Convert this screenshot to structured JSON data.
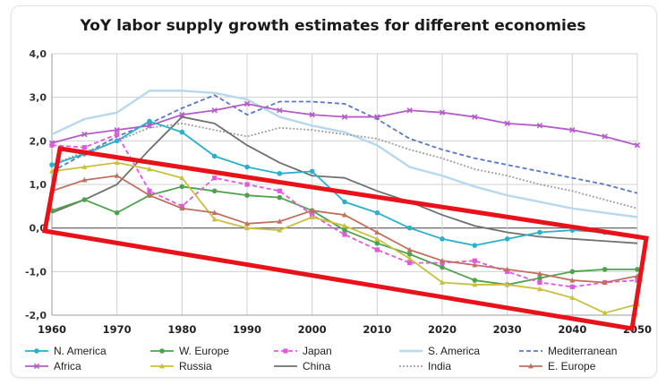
{
  "chart_data": {
    "type": "line",
    "title": "YoY labor supply growth estimates for different economies",
    "xlabel": "",
    "ylabel": "",
    "x": [
      1960,
      1965,
      1970,
      1975,
      1980,
      1985,
      1990,
      1995,
      2000,
      2005,
      2010,
      2015,
      2020,
      2025,
      2030,
      2035,
      2040,
      2045,
      2050
    ],
    "x_tick_labels": [
      "1960",
      "1970",
      "1980",
      "1990",
      "2000",
      "2010",
      "2020",
      "2030",
      "2040",
      "2050"
    ],
    "x_ticks": [
      1960,
      1970,
      1980,
      1990,
      2000,
      2010,
      2020,
      2030,
      2040,
      2050
    ],
    "xlim": [
      1960,
      2050
    ],
    "y_tick_labels": [
      "-2,0",
      "-1,0",
      "0,0",
      "1,0",
      "2,0",
      "3,0",
      "4,0"
    ],
    "y_ticks": [
      -2,
      -1,
      0,
      1,
      2,
      3,
      4
    ],
    "ylim": [
      -2,
      4
    ],
    "grid": true,
    "legend_position": "bottom",
    "series": [
      {
        "name": "N. America",
        "color": "#2ab0c8",
        "style": "solid",
        "marker": "circle",
        "values": [
          1.45,
          1.7,
          2.0,
          2.45,
          2.2,
          1.65,
          1.4,
          1.25,
          1.3,
          0.6,
          0.35,
          0.0,
          -0.25,
          -0.4,
          -0.25,
          -0.1,
          -0.05,
          -0.1,
          -0.2
        ]
      },
      {
        "name": "W. Europe",
        "color": "#4ea24e",
        "style": "solid",
        "marker": "circle",
        "values": [
          0.4,
          0.65,
          0.35,
          0.75,
          0.95,
          0.85,
          0.75,
          0.7,
          0.4,
          -0.05,
          -0.35,
          -0.6,
          -0.9,
          -1.2,
          -1.3,
          -1.15,
          -1.0,
          -0.95,
          -0.95
        ]
      },
      {
        "name": "Japan",
        "color": "#e05ae0",
        "style": "dashed",
        "marker": "square",
        "values": [
          1.9,
          1.85,
          2.15,
          0.85,
          0.5,
          1.15,
          1.0,
          0.85,
          0.3,
          -0.15,
          -0.5,
          -0.8,
          -0.8,
          -0.75,
          -1.0,
          -1.25,
          -1.35,
          -1.25,
          -1.2
        ]
      },
      {
        "name": "S. America",
        "color": "#b8d8ec",
        "style": "solid",
        "marker": "none",
        "values": [
          2.15,
          2.5,
          2.65,
          3.15,
          3.15,
          3.1,
          2.95,
          2.55,
          2.35,
          2.2,
          1.9,
          1.4,
          1.2,
          0.95,
          0.75,
          0.6,
          0.45,
          0.35,
          0.25
        ]
      },
      {
        "name": "Mediterranean",
        "color": "#5a78c0",
        "style": "dashed",
        "marker": "none",
        "values": [
          1.3,
          1.7,
          2.1,
          2.4,
          2.75,
          3.05,
          2.6,
          2.9,
          2.9,
          2.85,
          2.5,
          2.05,
          1.8,
          1.6,
          1.45,
          1.3,
          1.15,
          1.0,
          0.8
        ]
      },
      {
        "name": "Africa",
        "color": "#b45cc8",
        "style": "solid",
        "marker": "x",
        "values": [
          1.95,
          2.15,
          2.25,
          2.35,
          2.6,
          2.7,
          2.85,
          2.7,
          2.6,
          2.55,
          2.55,
          2.7,
          2.65,
          2.55,
          2.4,
          2.35,
          2.25,
          2.1,
          1.9
        ]
      },
      {
        "name": "Russia",
        "color": "#c8c040",
        "style": "solid",
        "marker": "triangle",
        "values": [
          1.3,
          1.4,
          1.5,
          1.35,
          1.15,
          0.2,
          0.0,
          -0.05,
          0.25,
          0.05,
          -0.25,
          -0.7,
          -1.25,
          -1.3,
          -1.3,
          -1.4,
          -1.6,
          -1.95,
          -1.75
        ]
      },
      {
        "name": "China",
        "color": "#707070",
        "style": "solid",
        "marker": "none",
        "values": [
          0.35,
          0.65,
          1.0,
          1.8,
          2.55,
          2.4,
          1.9,
          1.5,
          1.2,
          1.15,
          0.85,
          0.6,
          0.3,
          0.05,
          -0.1,
          -0.2,
          -0.25,
          -0.3,
          -0.35
        ]
      },
      {
        "name": "India",
        "color": "#a0a0a0",
        "style": "dotted",
        "marker": "none",
        "values": [
          1.45,
          1.75,
          2.0,
          2.3,
          2.4,
          2.25,
          2.1,
          2.3,
          2.25,
          2.15,
          2.05,
          1.8,
          1.6,
          1.35,
          1.2,
          1.0,
          0.85,
          0.65,
          0.45
        ]
      },
      {
        "name": "E. Europe",
        "color": "#c07060",
        "style": "solid",
        "marker": "triangle",
        "values": [
          0.85,
          1.1,
          1.2,
          0.75,
          0.45,
          0.35,
          0.1,
          0.15,
          0.4,
          0.3,
          -0.1,
          -0.5,
          -0.75,
          -0.85,
          -0.95,
          -1.05,
          -1.2,
          -1.25,
          -1.1
        ]
      }
    ],
    "annotation": {
      "type": "highlight-rectangle",
      "color": "#e8131a"
    }
  }
}
